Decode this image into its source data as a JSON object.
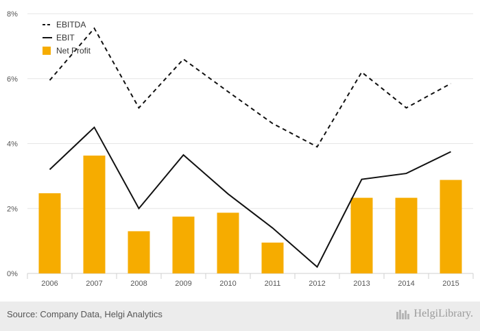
{
  "chart_data": {
    "type": "bar+line",
    "categories": [
      "2006",
      "2007",
      "2008",
      "2009",
      "2010",
      "2011",
      "2012",
      "2013",
      "2014",
      "2015"
    ],
    "y_unit": "%",
    "ylim": [
      0,
      8
    ],
    "y_ticks": [
      "0%",
      "2%",
      "4%",
      "6%",
      "8%"
    ],
    "grid": true,
    "legend_position": "top-left",
    "series": [
      {
        "name": "EBITDA",
        "kind": "line",
        "style": "dashed",
        "color": "#111111",
        "values": [
          5.95,
          7.55,
          5.1,
          6.6,
          5.6,
          4.62,
          3.9,
          6.2,
          5.1,
          5.85
        ]
      },
      {
        "name": "EBIT",
        "kind": "line",
        "style": "solid",
        "color": "#111111",
        "values": [
          3.2,
          4.5,
          2.0,
          3.65,
          2.45,
          1.4,
          0.2,
          2.9,
          3.08,
          3.75
        ]
      },
      {
        "name": "Net Profit",
        "kind": "bar",
        "color": "#f6ac00",
        "values": [
          2.47,
          3.63,
          1.3,
          1.75,
          1.87,
          0.95,
          0,
          2.33,
          2.33,
          2.88
        ]
      }
    ]
  },
  "footer": {
    "source": "Source: Company Data, Helgi Analytics",
    "brand": "HelgiLibrary."
  }
}
